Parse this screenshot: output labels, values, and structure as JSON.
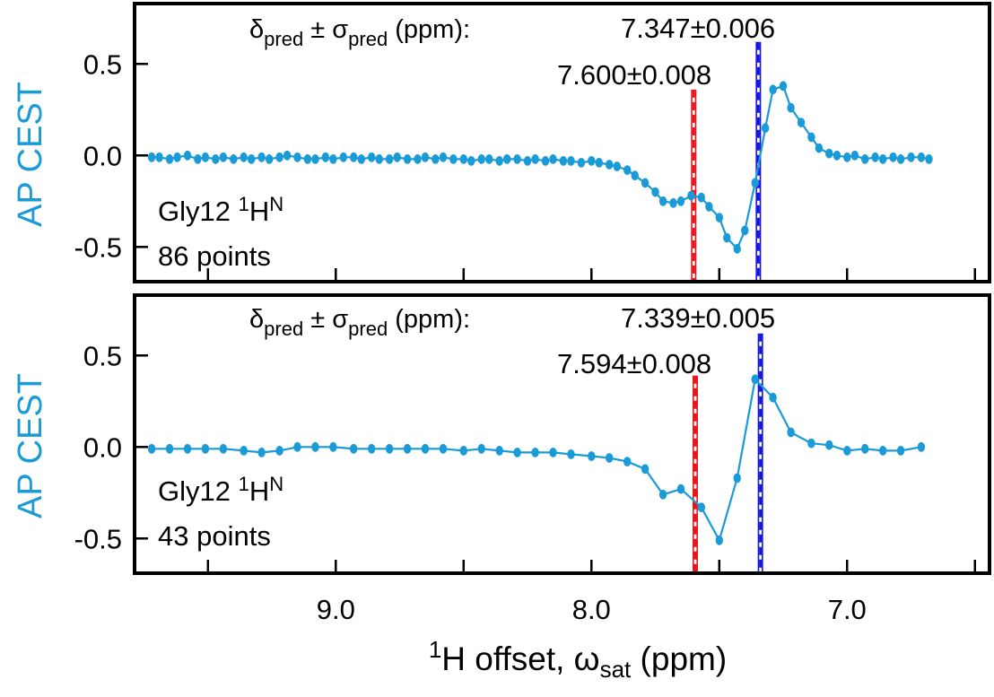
{
  "figure": {
    "colors": {
      "data": "#1a9ad6",
      "axis": "#000000",
      "marker_red": "#e8161c",
      "marker_blue": "#1616d8",
      "ylabel": "#1a9ad6"
    },
    "xlabel": {
      "pre": "1",
      "main": "H offset, ω",
      "sub": "sat",
      "post": " (ppm)"
    },
    "xaxis": {
      "range": [
        9.78,
        6.45
      ],
      "major_ticks": [
        9.0,
        8.0,
        7.0
      ],
      "major_labels": [
        "9.0",
        "8.0",
        "7.0"
      ],
      "minor_ticks": [
        9.5,
        8.5,
        7.5,
        6.5
      ]
    }
  },
  "chart_data": [
    {
      "type": "line",
      "ylabel": "AP CEST",
      "ylim": [
        -0.68,
        0.82
      ],
      "yticks": [
        0.5,
        0.0,
        -0.5
      ],
      "ytick_labels": [
        "0.5",
        "0.0",
        "-0.5"
      ],
      "header": {
        "symbol": "δ",
        "sub1": "pred",
        "pm": " ± ",
        "sigma": "σ",
        "sub2": "pred",
        "unit": " (ppm):"
      },
      "annotations": {
        "label_line1_main": "Gly12 ",
        "label_line1_sup1": "1",
        "label_line1_H": "H",
        "label_line1_sup2": "N",
        "label_line2": "86 points",
        "pred_blue_text": "7.347±0.006",
        "pred_red_text": "7.600±0.008"
      },
      "markers": [
        {
          "ppm": 7.6,
          "color": "red",
          "top": 0.36
        },
        {
          "ppm": 7.347,
          "color": "blue",
          "top": 0.62
        }
      ],
      "series": [
        {
          "name": "AP CEST",
          "x": [
            9.72,
            9.69,
            9.65,
            9.62,
            9.58,
            9.54,
            9.51,
            9.47,
            9.44,
            9.4,
            9.36,
            9.33,
            9.29,
            9.26,
            9.22,
            9.19,
            9.15,
            9.11,
            9.08,
            9.04,
            9.01,
            8.97,
            8.93,
            8.9,
            8.86,
            8.83,
            8.79,
            8.76,
            8.72,
            8.68,
            8.65,
            8.61,
            8.58,
            8.54,
            8.5,
            8.47,
            8.43,
            8.4,
            8.36,
            8.33,
            8.29,
            8.25,
            8.22,
            8.18,
            8.15,
            8.11,
            8.08,
            8.04,
            8.0,
            7.97,
            7.93,
            7.9,
            7.86,
            7.83,
            7.79,
            7.75,
            7.72,
            7.68,
            7.65,
            7.61,
            7.57,
            7.54,
            7.5,
            7.47,
            7.43,
            7.4,
            7.36,
            7.32,
            7.29,
            7.25,
            7.22,
            7.18,
            7.14,
            7.11,
            7.07,
            7.04,
            7.0,
            6.97,
            6.93,
            6.89,
            6.86,
            6.82,
            6.79,
            6.75,
            6.71,
            6.68
          ],
          "values": [
            -0.01,
            -0.01,
            -0.02,
            -0.01,
            0.0,
            -0.02,
            -0.01,
            -0.02,
            -0.01,
            -0.02,
            -0.01,
            -0.02,
            -0.01,
            -0.02,
            -0.01,
            0.0,
            -0.01,
            -0.02,
            -0.02,
            -0.01,
            -0.02,
            -0.01,
            -0.01,
            -0.02,
            -0.01,
            -0.02,
            -0.02,
            -0.01,
            -0.02,
            -0.02,
            -0.01,
            -0.02,
            -0.01,
            -0.02,
            -0.02,
            -0.03,
            -0.02,
            -0.02,
            -0.03,
            -0.02,
            -0.02,
            -0.03,
            -0.02,
            -0.03,
            -0.02,
            -0.03,
            -0.03,
            -0.04,
            -0.03,
            -0.04,
            -0.05,
            -0.06,
            -0.08,
            -0.11,
            -0.15,
            -0.2,
            -0.25,
            -0.26,
            -0.25,
            -0.22,
            -0.23,
            -0.28,
            -0.34,
            -0.45,
            -0.51,
            -0.41,
            -0.15,
            0.15,
            0.36,
            0.38,
            0.26,
            0.18,
            0.1,
            0.04,
            0.01,
            0.0,
            -0.01,
            0.0,
            -0.02,
            -0.01,
            -0.02,
            -0.01,
            -0.02,
            -0.01,
            -0.01,
            -0.02
          ]
        }
      ]
    },
    {
      "type": "line",
      "ylabel": "AP CEST",
      "ylim": [
        -0.68,
        0.82
      ],
      "yticks": [
        0.5,
        0.0,
        -0.5
      ],
      "ytick_labels": [
        "0.5",
        "0.0",
        "-0.5"
      ],
      "header": {
        "symbol": "δ",
        "sub1": "pred",
        "pm": " ± ",
        "sigma": "σ",
        "sub2": "pred",
        "unit": " (ppm):"
      },
      "annotations": {
        "label_line1_main": "Gly12 ",
        "label_line1_sup1": "1",
        "label_line1_H": "H",
        "label_line1_sup2": "N",
        "label_line2": "43 points",
        "pred_blue_text": "7.339±0.005",
        "pred_red_text": "7.594±0.008"
      },
      "markers": [
        {
          "ppm": 7.594,
          "color": "red",
          "top": 0.39
        },
        {
          "ppm": 7.339,
          "color": "blue",
          "top": 0.62
        }
      ],
      "series": [
        {
          "name": "AP CEST",
          "x": [
            9.72,
            9.65,
            9.58,
            9.51,
            9.44,
            9.36,
            9.29,
            9.22,
            9.15,
            9.08,
            9.01,
            8.93,
            8.86,
            8.79,
            8.72,
            8.65,
            8.58,
            8.5,
            8.43,
            8.36,
            8.29,
            8.22,
            8.15,
            8.08,
            8.0,
            7.93,
            7.86,
            7.79,
            7.72,
            7.65,
            7.57,
            7.5,
            7.43,
            7.36,
            7.29,
            7.22,
            7.14,
            7.07,
            7.0,
            6.93,
            6.86,
            6.79,
            6.71
          ],
          "values": [
            -0.01,
            -0.01,
            -0.01,
            -0.01,
            -0.01,
            -0.02,
            -0.03,
            -0.02,
            0.0,
            0.0,
            0.0,
            -0.01,
            -0.01,
            -0.01,
            -0.01,
            -0.01,
            -0.01,
            -0.02,
            -0.01,
            -0.02,
            -0.03,
            -0.03,
            -0.03,
            -0.04,
            -0.05,
            -0.06,
            -0.08,
            -0.12,
            -0.26,
            -0.23,
            -0.33,
            -0.51,
            -0.17,
            0.37,
            0.27,
            0.08,
            0.02,
            0.01,
            -0.02,
            -0.01,
            -0.02,
            -0.02,
            0.0
          ]
        }
      ]
    }
  ]
}
